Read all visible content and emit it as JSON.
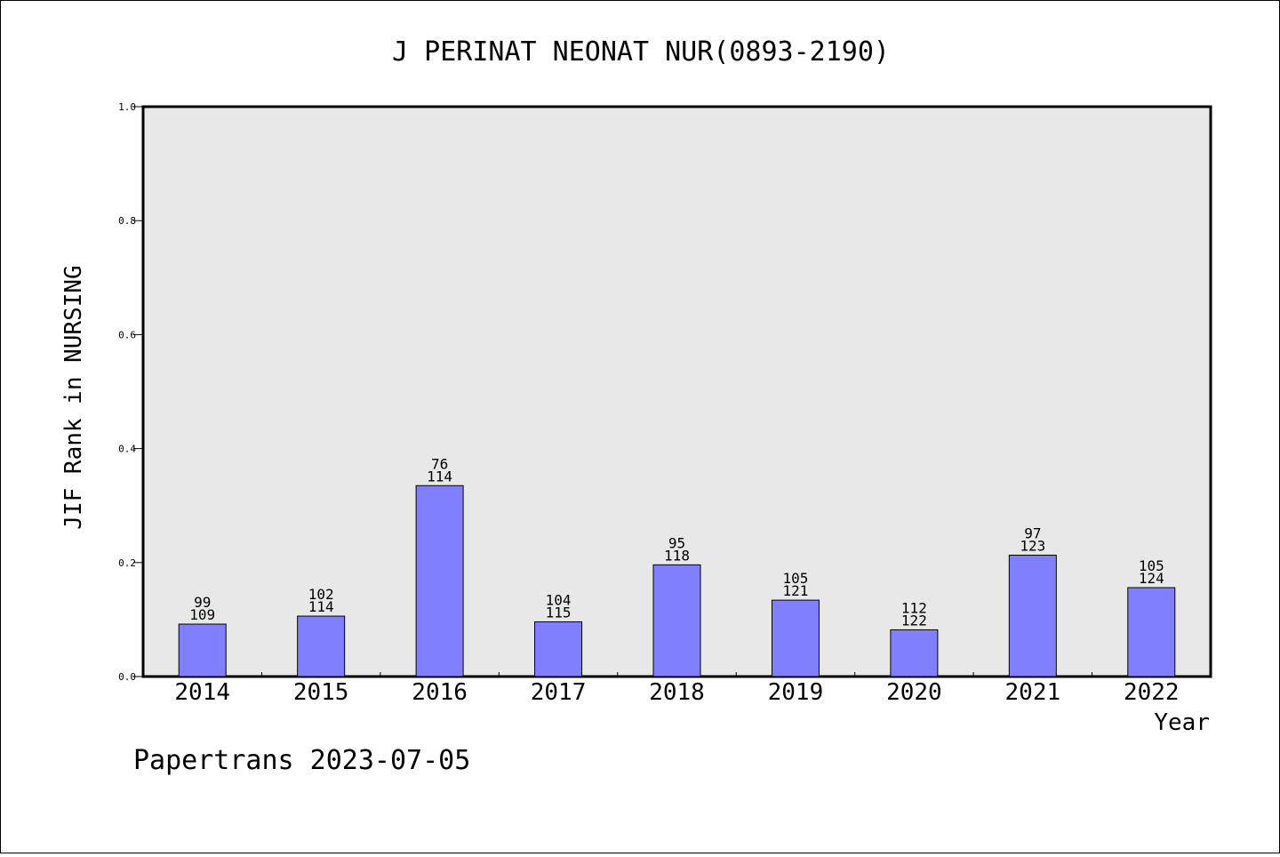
{
  "chart_data": {
    "type": "bar",
    "title": "J PERINAT NEONAT NUR(0893-2190)",
    "xlabel": "Year",
    "ylabel": "JIF Rank in NURSING",
    "ylim": [
      0,
      1.0
    ],
    "yticks": [
      "0.0",
      "0.2",
      "0.4",
      "0.6",
      "0.8",
      "1.0"
    ],
    "grid": false,
    "categories": [
      "2014",
      "2015",
      "2016",
      "2017",
      "2018",
      "2019",
      "2020",
      "2021",
      "2022"
    ],
    "values": [
      0.092,
      0.106,
      0.335,
      0.096,
      0.196,
      0.134,
      0.082,
      0.213,
      0.156
    ],
    "rank": [
      "99",
      "102",
      "76",
      "104",
      "95",
      "105",
      "112",
      "97",
      "105"
    ],
    "total": [
      "109",
      "114",
      "114",
      "115",
      "118",
      "121",
      "122",
      "123",
      "124"
    ],
    "colors": {
      "bar": "#8080ff",
      "plot_background": "#e8e8e8"
    }
  },
  "footer": {
    "text": "Papertrans 2023-07-05"
  }
}
